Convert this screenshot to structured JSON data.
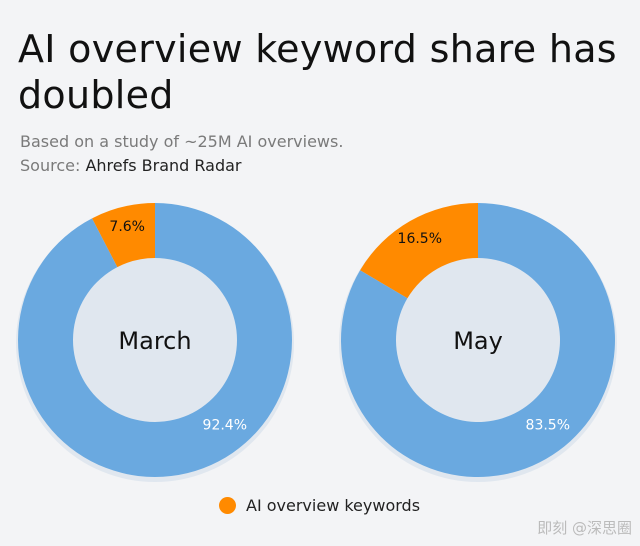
{
  "title": "AI overview keyword share has doubled",
  "subtitle": "Based on a study of ~25M AI overviews.",
  "source_label": "Source:",
  "source_name": "Ahrefs Brand Radar",
  "watermark": "即刻 @深思圈",
  "colors": {
    "ai": "#ff8a00",
    "other": "#6aa9e0",
    "background": "#f3f4f6"
  },
  "chart_data": [
    {
      "type": "pie",
      "variant": "donut",
      "center_label": "March",
      "slices": [
        {
          "label": "AI overview keywords",
          "value": 7.6,
          "display": "7.6%"
        },
        {
          "value": 92.4,
          "display": "92.4%"
        }
      ]
    },
    {
      "type": "pie",
      "variant": "donut",
      "center_label": "May",
      "slices": [
        {
          "label": "AI overview keywords",
          "value": 16.5,
          "display": "16.5%"
        },
        {
          "value": 83.5,
          "display": "83.5%"
        }
      ]
    }
  ],
  "legend": {
    "label": "AI overview keywords",
    "placement": "bottom"
  }
}
